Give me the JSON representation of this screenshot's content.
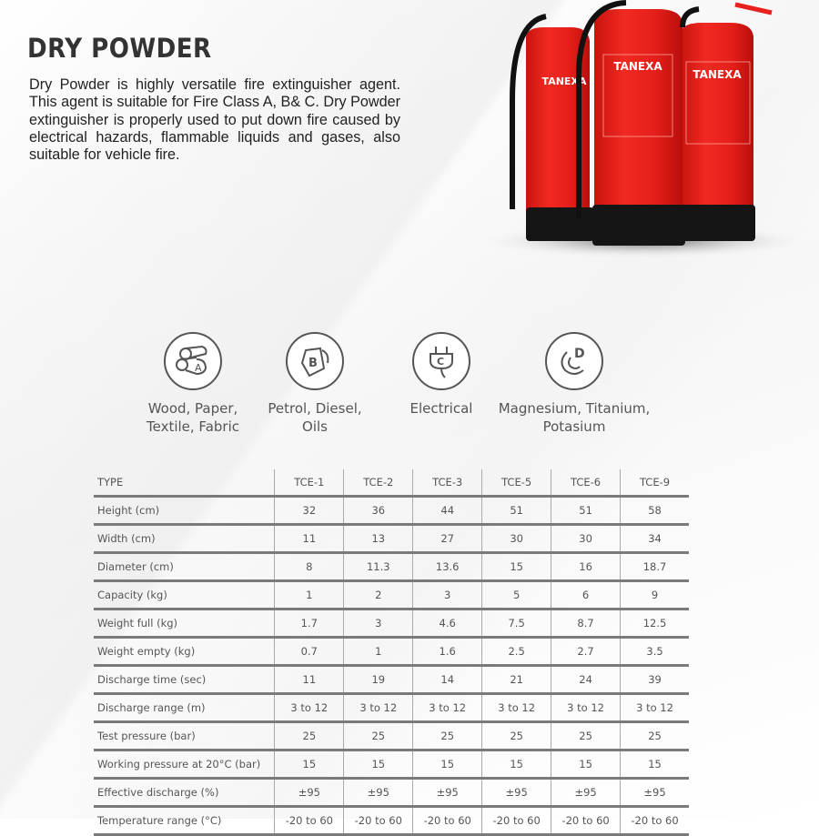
{
  "title": "DRY POWDER",
  "description": "Dry Powder is highly versatile fire extinguisher agent. This agent is suitable for Fire Class A, B& C. Dry Powder extinguisher is properly used to put down fire caused by electrical hazards, flammable liquids and gases, also suitable for vehicle fire.",
  "product_image": {
    "brand": "TANEXA",
    "color": "#e8201e"
  },
  "fire_classes": [
    {
      "letter": "A",
      "icon": "wood-logs-icon",
      "label_line1": "Wood, Paper,",
      "label_line2": "Textile, Fabric"
    },
    {
      "letter": "B",
      "icon": "fuel-can-icon",
      "label_line1": "Petrol, Diesel,",
      "label_line2": "Oils"
    },
    {
      "letter": "C",
      "icon": "electric-plug-icon",
      "label_line1": "Electrical",
      "label_line2": ""
    },
    {
      "letter": "D",
      "icon": "metal-gear-icon",
      "label_line1": "Magnesium, Titanium,",
      "label_line2": "Potasium"
    }
  ],
  "spec_table": {
    "headers": [
      "TYPE",
      "TCE-1",
      "TCE-2",
      "TCE-3",
      "TCE-5",
      "TCE-6",
      "TCE-9"
    ],
    "rows": [
      [
        "Height (cm)",
        "32",
        "36",
        "44",
        "51",
        "51",
        "58"
      ],
      [
        "Width (cm)",
        "11",
        "13",
        "27",
        "30",
        "30",
        "34"
      ],
      [
        "Diameter (cm)",
        "8",
        "11.3",
        "13.6",
        "15",
        "16",
        "18.7"
      ],
      [
        "Capacity (kg)",
        "1",
        "2",
        "3",
        "5",
        "6",
        "9"
      ],
      [
        "Weight full (kg)",
        "1.7",
        "3",
        "4.6",
        "7.5",
        "8.7",
        "12.5"
      ],
      [
        "Weight empty (kg)",
        "0.7",
        "1",
        "1.6",
        "2.5",
        "2.7",
        "3.5"
      ],
      [
        "Discharge time (sec)",
        "11",
        "19",
        "14",
        "21",
        "24",
        "39"
      ],
      [
        "Discharge range (m)",
        "3 to 12",
        "3 to 12",
        "3 to 12",
        "3 to 12",
        "3 to 12",
        "3 to 12"
      ],
      [
        "Test pressure (bar)",
        "25",
        "25",
        "25",
        "25",
        "25",
        "25"
      ],
      [
        "Working pressure at 20°C (bar)",
        "15",
        "15",
        "15",
        "15",
        "15",
        "15"
      ],
      [
        "Effective discharge (%)",
        "±95",
        "±95",
        "±95",
        "±95",
        "±95",
        "±95"
      ],
      [
        "Temperature range (°C)",
        "-20 to 60",
        "-20 to 60",
        "-20 to 60",
        "-20 to 60",
        "-20 to 60",
        "-20 to 60"
      ]
    ]
  }
}
